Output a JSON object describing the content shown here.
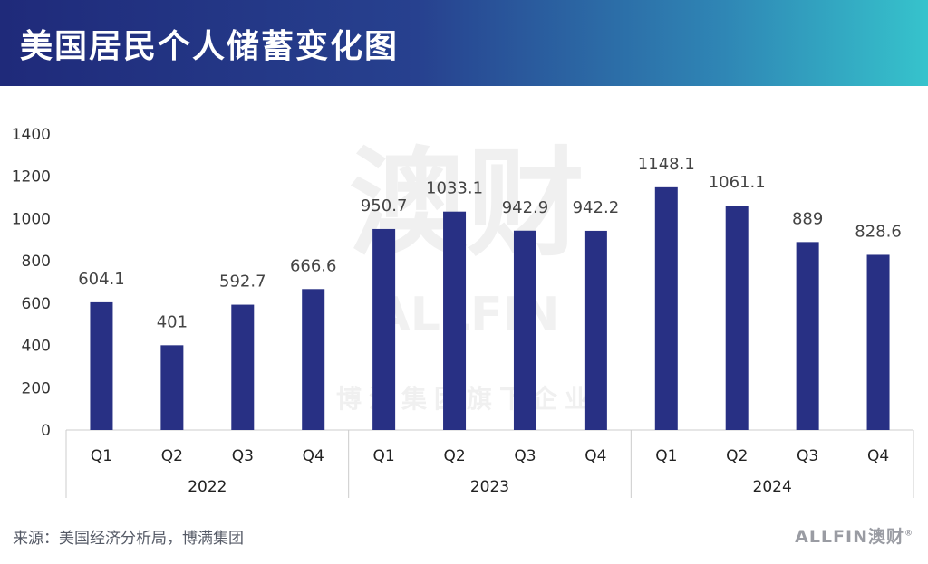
{
  "header": {
    "title": "美国居民个人储蓄变化图"
  },
  "chart_data": {
    "type": "bar",
    "title": "",
    "xlabel": "",
    "ylabel": "",
    "ylim": [
      0,
      1400
    ],
    "yticks": [
      0,
      200,
      400,
      600,
      800,
      1000,
      1200,
      1400
    ],
    "categories": [
      "Q1",
      "Q2",
      "Q3",
      "Q4",
      "Q1",
      "Q2",
      "Q3",
      "Q4",
      "Q1",
      "Q2",
      "Q3",
      "Q4"
    ],
    "groups": [
      {
        "label": "2022",
        "count": 4
      },
      {
        "label": "2023",
        "count": 4
      },
      {
        "label": "2024",
        "count": 4
      }
    ],
    "values": [
      604.1,
      401,
      592.7,
      666.6,
      950.7,
      1033.1,
      942.9,
      942.2,
      1148.1,
      1061.1,
      889,
      828.6
    ],
    "value_labels": [
      "604.1",
      "401",
      "592.7",
      "666.6",
      "950.7",
      "1033.1",
      "942.9",
      "942.2",
      "1148.1",
      "1061.1",
      "889",
      "828.6"
    ],
    "grid": false,
    "legend": "none",
    "bar_color": "#283084"
  },
  "watermark": {
    "main": "澳财",
    "brand": "ALLFIN",
    "sub": "博满集团旗下企业"
  },
  "footer": {
    "source": "来源：美国经济分析局，博满集团",
    "logo_text": "ALLFIN澳财",
    "logo_mark": "®"
  }
}
